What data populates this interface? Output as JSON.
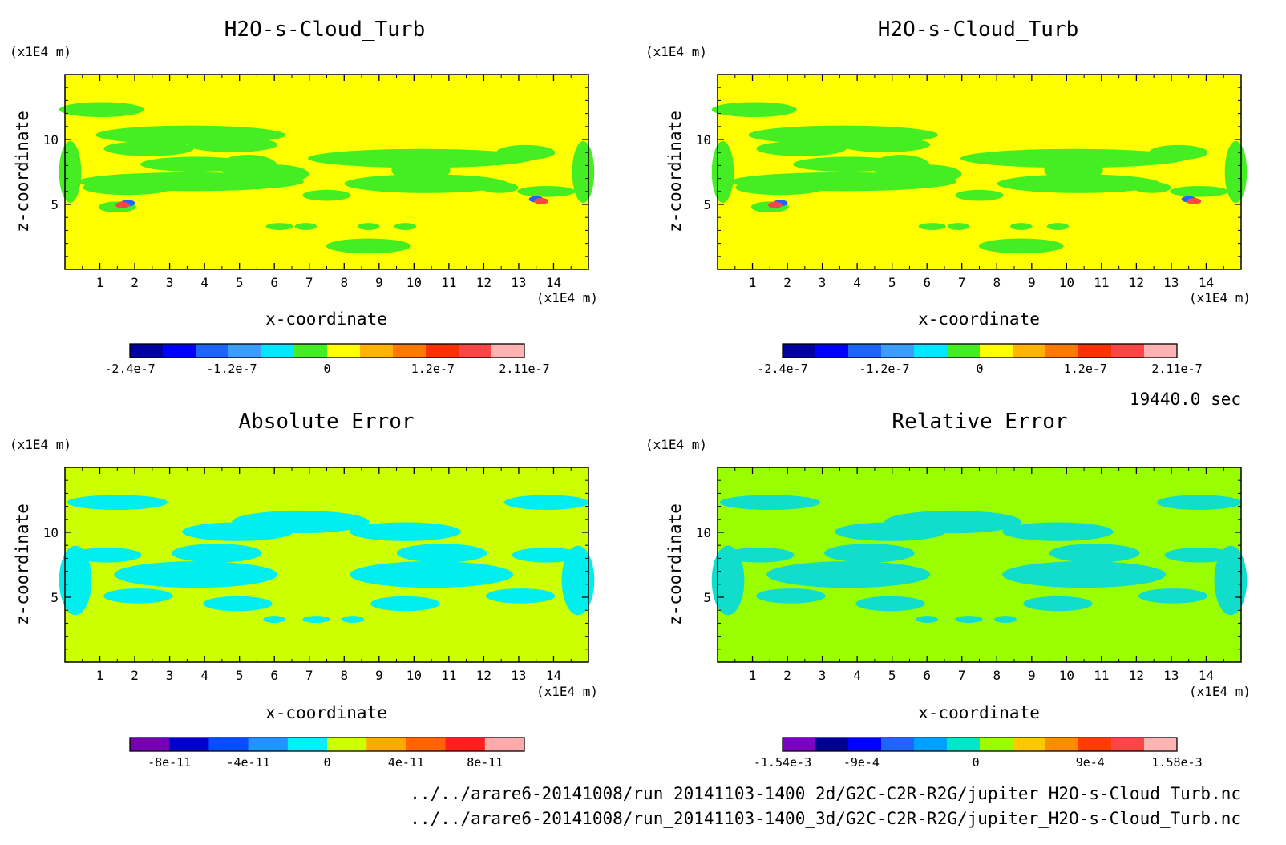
{
  "time_label": "19440.0 sec",
  "footer": {
    "file_2d": "../../arare6-20141008/run_20141103-1400_2d/G2C-C2R-R2G/jupiter_H2O-s-Cloud_Turb.nc",
    "file_3d": "../../arare6-20141008/run_20141103-1400_3d/G2C-C2R-R2G/jupiter_H2O-s-Cloud_Turb.nc"
  },
  "chart_data": [
    {
      "type": "heatmap",
      "title": "H2O-s-Cloud_Turb",
      "xlabel": "x-coordinate",
      "ylabel": "z-coordinate",
      "x_unit": "(x1E4 m)",
      "y_unit": "(x1E4 m)",
      "xlim": [
        0,
        15
      ],
      "ylim": [
        0,
        15
      ],
      "x_ticks": [
        "1",
        "2",
        "3",
        "4",
        "5",
        "6",
        "7",
        "8",
        "9",
        "10",
        "11",
        "12",
        "13",
        "14"
      ],
      "y_ticks": [
        "5",
        "10"
      ],
      "background_color": "#ffff00",
      "feature_color": "#44ee22",
      "colorbar": {
        "colors": [
          "#0000a0",
          "#0000ff",
          "#1e64ff",
          "#3c9cff",
          "#00e8ff",
          "#44ee22",
          "#ffff00",
          "#ffb400",
          "#ff7800",
          "#ff3000",
          "#ff4646",
          "#ffb4b4"
        ],
        "labels": [
          "-2.4e-7",
          "-1.2e-7",
          "0",
          "1.2e-7",
          "2.11e-7"
        ],
        "label_fractions": [
          0.0,
          0.258,
          0.5,
          0.768,
          1.0
        ]
      }
    },
    {
      "type": "heatmap",
      "title": "H2O-s-Cloud_Turb",
      "xlabel": "x-coordinate",
      "ylabel": "z-coordinate",
      "x_unit": "(x1E4 m)",
      "y_unit": "(x1E4 m)",
      "xlim": [
        0,
        15
      ],
      "ylim": [
        0,
        15
      ],
      "x_ticks": [
        "1",
        "2",
        "3",
        "4",
        "5",
        "6",
        "7",
        "8",
        "9",
        "10",
        "11",
        "12",
        "13",
        "14"
      ],
      "y_ticks": [
        "5",
        "10"
      ],
      "background_color": "#ffff00",
      "feature_color": "#44ee22",
      "colorbar": {
        "colors": [
          "#0000a0",
          "#0000ff",
          "#1e64ff",
          "#3c9cff",
          "#00e8ff",
          "#44ee22",
          "#ffff00",
          "#ffb400",
          "#ff7800",
          "#ff3000",
          "#ff4646",
          "#ffb4b4"
        ],
        "labels": [
          "-2.4e-7",
          "-1.2e-7",
          "0",
          "1.2e-7",
          "2.11e-7"
        ],
        "label_fractions": [
          0.0,
          0.258,
          0.5,
          0.768,
          1.0
        ]
      }
    },
    {
      "type": "heatmap",
      "title": "Absolute Error",
      "xlabel": "x-coordinate",
      "ylabel": "z-coordinate",
      "x_unit": "(x1E4 m)",
      "y_unit": "(x1E4 m)",
      "xlim": [
        0,
        15
      ],
      "ylim": [
        0,
        15
      ],
      "x_ticks": [
        "1",
        "2",
        "3",
        "4",
        "5",
        "6",
        "7",
        "8",
        "9",
        "10",
        "11",
        "12",
        "13",
        "14"
      ],
      "y_ticks": [
        "5",
        "10"
      ],
      "background_color": "#ccff00",
      "feature_color": "#00eeee",
      "colorbar": {
        "colors": [
          "#7800b4",
          "#0000c8",
          "#0050ff",
          "#1e96ff",
          "#00f0ff",
          "#ccff00",
          "#ffaa00",
          "#ff6400",
          "#ff1e1e",
          "#ffaaaa"
        ],
        "labels": [
          "-8e-11",
          "-4e-11",
          "0",
          "4e-11",
          "8e-11"
        ],
        "label_fractions": [
          0.1,
          0.3,
          0.5,
          0.7,
          0.9
        ]
      }
    },
    {
      "type": "heatmap",
      "title": "Relative Error",
      "xlabel": "x-coordinate",
      "ylabel": "z-coordinate",
      "x_unit": "(x1E4 m)",
      "y_unit": "(x1E4 m)",
      "xlim": [
        0,
        15
      ],
      "ylim": [
        0,
        15
      ],
      "x_ticks": [
        "1",
        "2",
        "3",
        "4",
        "5",
        "6",
        "7",
        "8",
        "9",
        "10",
        "11",
        "12",
        "13",
        "14"
      ],
      "y_ticks": [
        "5",
        "10"
      ],
      "background_color": "#99ff00",
      "feature_color": "#11ddcc",
      "colorbar": {
        "colors": [
          "#8000c0",
          "#000090",
          "#0000ff",
          "#1e64ff",
          "#00a0ff",
          "#00e6c8",
          "#99ff00",
          "#ffc800",
          "#ff8c00",
          "#ff3c00",
          "#ff4646",
          "#ffb4b4"
        ],
        "labels": [
          "-1.54e-3",
          "-9e-4",
          "0",
          "9e-4",
          "1.58e-3"
        ],
        "label_fractions": [
          0.0,
          0.2,
          0.49,
          0.78,
          1.0
        ]
      }
    }
  ]
}
